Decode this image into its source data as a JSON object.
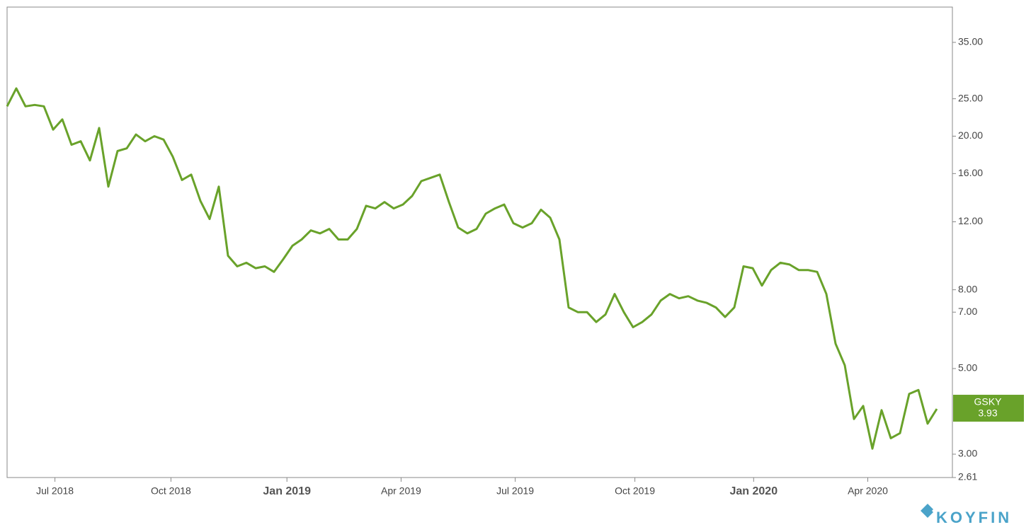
{
  "chart_data": {
    "type": "line",
    "log_y": true,
    "watermark": "KOYFIN",
    "series": [
      {
        "name": "GSKY",
        "color": "#69a22a",
        "values": [
          23.9,
          26.6,
          23.9,
          24.1,
          23.9,
          20.8,
          22.1,
          19.0,
          19.4,
          17.3,
          21.0,
          14.8,
          18.3,
          18.6,
          20.2,
          19.4,
          20.0,
          19.6,
          17.7,
          15.4,
          15.9,
          13.6,
          12.2,
          14.8,
          9.8,
          9.2,
          9.4,
          9.1,
          9.2,
          8.9,
          9.6,
          10.4,
          10.8,
          11.4,
          11.2,
          11.5,
          10.8,
          10.8,
          11.5,
          13.2,
          13.0,
          13.5,
          13.0,
          13.3,
          14.0,
          15.3,
          15.6,
          15.9,
          13.5,
          11.6,
          11.2,
          11.5,
          12.6,
          13.0,
          13.3,
          11.9,
          11.6,
          11.9,
          12.9,
          12.3,
          10.8,
          7.2,
          7.0,
          7.0,
          6.6,
          6.9,
          7.8,
          7.0,
          6.4,
          6.6,
          6.9,
          7.5,
          7.8,
          7.6,
          7.7,
          7.5,
          7.4,
          7.2,
          6.8,
          7.2,
          9.2,
          9.1,
          8.2,
          9.0,
          9.4,
          9.3,
          9.0,
          9.0,
          8.9,
          7.8,
          5.8,
          5.1,
          3.7,
          4.0,
          3.1,
          3.9,
          3.3,
          3.4,
          4.3,
          4.4,
          3.6,
          3.93
        ]
      }
    ],
    "xlim": [
      0,
      101
    ],
    "xticks": [
      {
        "value": 5.2,
        "label": "Jul 2018"
      },
      {
        "value": 17.8,
        "label": "Oct 2018"
      },
      {
        "value": 30.4,
        "label": "Jan 2019"
      },
      {
        "value": 42.8,
        "label": "Apr 2019"
      },
      {
        "value": 55.2,
        "label": "Jul 2019"
      },
      {
        "value": 68.2,
        "label": "Oct 2019"
      },
      {
        "value": 81.1,
        "label": "Jan 2020"
      },
      {
        "value": 93.5,
        "label": "Apr 2020"
      }
    ],
    "ylim": [
      2.61,
      43.2
    ],
    "yticks": [
      2.61,
      {
        "value": 3,
        "label": "3.00"
      },
      {
        "value": 5,
        "label": "5.00"
      },
      {
        "value": 7,
        "label": "7.00"
      },
      {
        "value": 8,
        "label": "8.00"
      },
      {
        "value": 12,
        "label": "12.00"
      },
      {
        "value": 16,
        "label": "16.00"
      },
      {
        "value": 20,
        "label": "20.00"
      },
      {
        "value": 25,
        "label": "25.00"
      },
      {
        "value": 35,
        "label": "35.00"
      }
    ]
  }
}
